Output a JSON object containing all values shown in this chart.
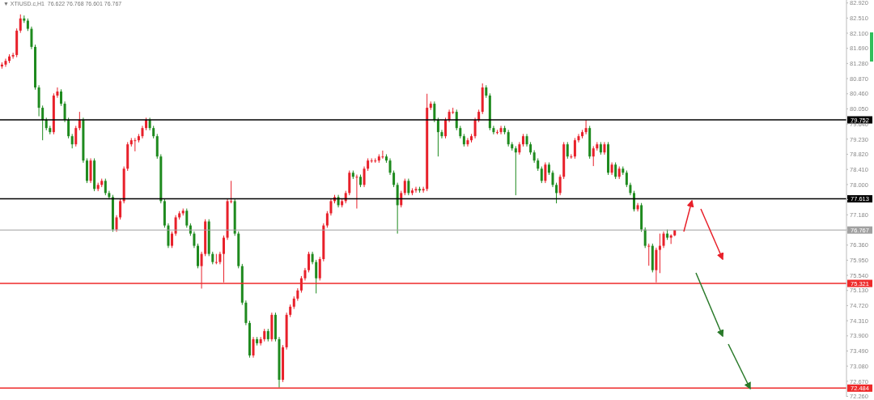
{
  "chart_data": {
    "type": "candlestick",
    "title": "▼ XTIUSD.c,H1  76.622 76.768 76.601 76.767",
    "categories": [
      null,
      null,
      null,
      null,
      null,
      null,
      null,
      null,
      null,
      null,
      null,
      null,
      null,
      null,
      null,
      null,
      null,
      null,
      null,
      null,
      null,
      null,
      null,
      null,
      null,
      null,
      null,
      null,
      null,
      null,
      null,
      null,
      null,
      null,
      null,
      null,
      null,
      null,
      null,
      null,
      null,
      null,
      null,
      null,
      null,
      null,
      null,
      null,
      null,
      null,
      null,
      null,
      null,
      null,
      null,
      null,
      null,
      null,
      null,
      null,
      null,
      null,
      null,
      null,
      null,
      null,
      null,
      null,
      null,
      null,
      null,
      null,
      null,
      null,
      null,
      null,
      null,
      null,
      null,
      null,
      null,
      null,
      null,
      null,
      null,
      null,
      null,
      null,
      null,
      null,
      null,
      null,
      null,
      null,
      null,
      null,
      null,
      null,
      null,
      null,
      null,
      null,
      null,
      null,
      null,
      null,
      null,
      null,
      null,
      null,
      null,
      null,
      null,
      null,
      null,
      null,
      null,
      null,
      null,
      null,
      null,
      null,
      null,
      null,
      null,
      null,
      null,
      null,
      null,
      null,
      null,
      null,
      null,
      null,
      null,
      null,
      null,
      null,
      null,
      null,
      null,
      null,
      null,
      null,
      null,
      null,
      null,
      null,
      null,
      null,
      null,
      null,
      null,
      null,
      null,
      null,
      null,
      null,
      null,
      null,
      null,
      null,
      null,
      null,
      null,
      null,
      null,
      null,
      null,
      null,
      null,
      null,
      null,
      null,
      null,
      null,
      null,
      null,
      null,
      null,
      null,
      null,
      null,
      null,
      null,
      null,
      null,
      null,
      null,
      null,
      null,
      null,
      null,
      null,
      null,
      null,
      null,
      null,
      null,
      null,
      null,
      null,
      null,
      null,
      null,
      null,
      null,
      null,
      null,
      null,
      null,
      null,
      null,
      null,
      null,
      null,
      null,
      null,
      null,
      null,
      null,
      null,
      null,
      null,
      null,
      null,
      null,
      null,
      null
    ],
    "ohlc": [
      [
        81.2,
        81.31,
        81.14,
        81.25
      ],
      [
        81.25,
        81.41,
        81.19,
        81.35
      ],
      [
        81.35,
        81.53,
        81.29,
        81.47
      ],
      [
        81.47,
        81.57,
        81.41,
        81.51
      ],
      [
        81.51,
        82.23,
        81.45,
        82.17
      ],
      [
        82.17,
        82.61,
        82.11,
        82.5
      ],
      [
        82.5,
        82.58,
        82.38,
        82.44
      ],
      [
        82.44,
        82.5,
        82.16,
        82.22
      ],
      [
        82.22,
        82.28,
        81.67,
        81.73
      ],
      [
        81.73,
        81.79,
        80.57,
        80.63
      ],
      [
        80.63,
        80.69,
        79.85,
        80.08
      ],
      [
        80.08,
        80.14,
        79.2,
        79.75
      ],
      [
        79.75,
        79.81,
        79.47,
        79.53
      ],
      [
        79.53,
        79.59,
        79.36,
        79.42
      ],
      [
        79.42,
        80.47,
        79.36,
        80.41
      ],
      [
        80.41,
        80.63,
        80.35,
        80.52
      ],
      [
        80.52,
        80.58,
        80.13,
        80.19
      ],
      [
        80.19,
        80.25,
        79.69,
        79.75
      ],
      [
        79.75,
        79.81,
        79.25,
        79.31
      ],
      [
        79.31,
        79.37,
        78.98,
        79.09
      ],
      [
        79.09,
        79.59,
        79.03,
        79.53
      ],
      [
        79.53,
        79.97,
        79.47,
        79.75
      ],
      [
        79.75,
        79.81,
        78.59,
        78.65
      ],
      [
        78.65,
        78.71,
        78.04,
        78.1
      ],
      [
        78.1,
        78.71,
        78.04,
        78.65
      ],
      [
        78.65,
        78.71,
        77.82,
        77.88
      ],
      [
        77.88,
        78.05,
        77.82,
        77.99
      ],
      [
        77.99,
        78.16,
        77.93,
        78.1
      ],
      [
        78.1,
        78.16,
        77.71,
        77.77
      ],
      [
        77.77,
        77.83,
        77.6,
        77.66
      ],
      [
        77.66,
        77.72,
        76.72,
        76.78
      ],
      [
        76.78,
        77.17,
        76.72,
        77.11
      ],
      [
        77.11,
        77.61,
        77.05,
        77.55
      ],
      [
        77.55,
        78.49,
        77.49,
        78.43
      ],
      [
        78.43,
        79.15,
        78.37,
        79.09
      ],
      [
        79.09,
        79.26,
        79.03,
        79.2
      ],
      [
        79.2,
        79.26,
        78.9,
        79.2
      ],
      [
        79.2,
        79.37,
        79.14,
        79.31
      ],
      [
        79.31,
        79.59,
        79.25,
        79.53
      ],
      [
        79.53,
        79.81,
        79.47,
        79.75
      ],
      [
        79.75,
        79.81,
        79.47,
        79.53
      ],
      [
        79.53,
        79.59,
        79.25,
        79.31
      ],
      [
        79.31,
        79.37,
        78.7,
        78.76
      ],
      [
        78.76,
        78.82,
        77.49,
        77.55
      ],
      [
        77.55,
        77.61,
        76.83,
        76.89
      ],
      [
        76.89,
        76.95,
        76.28,
        76.34
      ],
      [
        76.34,
        76.73,
        76.28,
        76.67
      ],
      [
        76.67,
        77.17,
        76.61,
        77.11
      ],
      [
        77.11,
        77.28,
        77.05,
        77.22
      ],
      [
        77.22,
        77.35,
        77.16,
        77.29
      ],
      [
        77.29,
        77.35,
        76.83,
        76.89
      ],
      [
        76.89,
        76.95,
        76.61,
        76.67
      ],
      [
        76.67,
        76.73,
        76.28,
        76.34
      ],
      [
        76.34,
        76.4,
        75.73,
        75.79
      ],
      [
        75.79,
        76.18,
        75.18,
        76.12
      ],
      [
        76.12,
        77.06,
        76.06,
        77.0
      ],
      [
        77.0,
        77.06,
        76.06,
        76.12
      ],
      [
        76.12,
        76.18,
        75.84,
        75.9
      ],
      [
        75.9,
        76.12,
        75.84,
        75.9
      ],
      [
        75.9,
        76.18,
        75.84,
        76.12
      ],
      [
        76.12,
        76.62,
        75.35,
        76.56
      ],
      [
        76.56,
        77.61,
        76.5,
        77.55
      ],
      [
        77.55,
        78.1,
        77.49,
        77.55
      ],
      [
        77.55,
        77.61,
        76.61,
        76.67
      ],
      [
        76.67,
        76.73,
        75.73,
        75.79
      ],
      [
        75.79,
        75.85,
        74.74,
        74.8
      ],
      [
        74.8,
        74.86,
        74.19,
        74.25
      ],
      [
        74.25,
        74.31,
        73.31,
        73.37
      ],
      [
        73.37,
        73.87,
        73.31,
        73.81
      ],
      [
        73.81,
        73.87,
        73.64,
        73.7
      ],
      [
        73.7,
        73.87,
        73.64,
        73.81
      ],
      [
        73.81,
        74.09,
        73.75,
        74.03
      ],
      [
        74.03,
        74.09,
        73.75,
        73.81
      ],
      [
        73.81,
        74.53,
        73.75,
        74.47
      ],
      [
        74.47,
        74.53,
        73.75,
        73.81
      ],
      [
        73.81,
        73.87,
        72.5,
        72.71
      ],
      [
        72.71,
        73.65,
        72.65,
        73.59
      ],
      [
        73.59,
        74.53,
        73.53,
        74.47
      ],
      [
        74.47,
        74.75,
        74.41,
        74.69
      ],
      [
        74.69,
        74.97,
        74.63,
        74.91
      ],
      [
        74.91,
        75.19,
        74.85,
        75.13
      ],
      [
        75.13,
        75.52,
        75.07,
        75.46
      ],
      [
        75.46,
        75.74,
        75.4,
        75.68
      ],
      [
        75.68,
        76.18,
        75.62,
        76.12
      ],
      [
        76.12,
        76.18,
        75.84,
        75.9
      ],
      [
        75.9,
        75.96,
        75.05,
        75.46
      ],
      [
        75.46,
        76.04,
        75.4,
        75.98
      ],
      [
        75.98,
        76.95,
        75.92,
        76.89
      ],
      [
        76.89,
        77.28,
        76.83,
        77.22
      ],
      [
        77.22,
        77.61,
        77.16,
        77.55
      ],
      [
        77.55,
        77.72,
        77.49,
        77.66
      ],
      [
        77.66,
        77.72,
        77.38,
        77.44
      ],
      [
        77.44,
        77.61,
        77.38,
        77.55
      ],
      [
        77.55,
        77.83,
        77.49,
        77.77
      ],
      [
        77.77,
        78.38,
        77.71,
        78.32
      ],
      [
        78.32,
        78.38,
        78.15,
        78.21
      ],
      [
        78.21,
        78.27,
        77.35,
        78.21
      ],
      [
        78.21,
        78.27,
        77.93,
        77.99
      ],
      [
        77.99,
        78.49,
        77.93,
        78.43
      ],
      [
        78.43,
        78.71,
        78.37,
        78.65
      ],
      [
        78.65,
        78.71,
        78.59,
        78.65
      ],
      [
        78.65,
        78.71,
        78.59,
        78.65
      ],
      [
        78.65,
        78.82,
        78.59,
        78.76
      ],
      [
        78.76,
        78.92,
        78.7,
        78.76
      ],
      [
        78.76,
        78.82,
        78.59,
        78.65
      ],
      [
        78.65,
        78.71,
        78.26,
        78.32
      ],
      [
        78.32,
        78.38,
        77.93,
        77.99
      ],
      [
        77.99,
        78.05,
        76.67,
        77.44
      ],
      [
        77.44,
        77.83,
        77.38,
        77.77
      ],
      [
        77.77,
        78.16,
        77.71,
        78.1
      ],
      [
        78.1,
        78.16,
        77.71,
        77.77
      ],
      [
        77.77,
        77.9,
        77.71,
        77.84
      ],
      [
        77.84,
        77.94,
        77.78,
        77.88
      ],
      [
        77.88,
        77.94,
        77.78,
        77.84
      ],
      [
        77.84,
        77.94,
        77.78,
        77.88
      ],
      [
        77.88,
        80.46,
        77.82,
        80.08
      ],
      [
        80.08,
        80.25,
        80.02,
        80.19
      ],
      [
        80.19,
        80.25,
        79.69,
        79.75
      ],
      [
        79.75,
        79.81,
        78.76,
        79.42
      ],
      [
        79.42,
        79.48,
        79.25,
        79.31
      ],
      [
        79.31,
        79.81,
        79.25,
        79.75
      ],
      [
        79.75,
        80.03,
        79.69,
        79.97
      ],
      [
        79.97,
        80.08,
        79.91,
        79.97
      ],
      [
        79.97,
        80.03,
        79.47,
        79.53
      ],
      [
        79.53,
        79.59,
        79.25,
        79.31
      ],
      [
        79.31,
        79.37,
        79.03,
        79.09
      ],
      [
        79.09,
        79.26,
        79.03,
        79.2
      ],
      [
        79.2,
        79.37,
        79.14,
        79.31
      ],
      [
        79.31,
        79.81,
        79.25,
        79.75
      ],
      [
        79.75,
        80.03,
        79.69,
        79.97
      ],
      [
        79.97,
        80.74,
        79.91,
        80.63
      ],
      [
        80.63,
        80.69,
        80.35,
        80.41
      ],
      [
        80.41,
        80.47,
        79.47,
        79.53
      ],
      [
        79.53,
        79.59,
        79.36,
        79.42
      ],
      [
        79.42,
        79.48,
        79.36,
        79.42
      ],
      [
        79.42,
        79.59,
        79.36,
        79.53
      ],
      [
        79.53,
        79.59,
        79.36,
        79.42
      ],
      [
        79.42,
        79.48,
        79.03,
        79.09
      ],
      [
        79.09,
        79.15,
        78.92,
        78.98
      ],
      [
        78.98,
        79.04,
        77.71,
        78.87
      ],
      [
        78.87,
        79.15,
        78.81,
        79.09
      ],
      [
        79.09,
        79.37,
        79.03,
        79.31
      ],
      [
        79.31,
        79.37,
        79.03,
        79.09
      ],
      [
        79.09,
        79.15,
        78.81,
        78.87
      ],
      [
        78.87,
        78.93,
        78.59,
        78.65
      ],
      [
        78.65,
        78.71,
        78.37,
        78.43
      ],
      [
        78.43,
        78.49,
        78.04,
        78.1
      ],
      [
        78.1,
        78.6,
        78.04,
        78.54
      ],
      [
        78.54,
        78.6,
        78.26,
        78.32
      ],
      [
        78.32,
        78.38,
        77.93,
        77.99
      ],
      [
        77.99,
        78.05,
        77.49,
        77.77
      ],
      [
        77.77,
        78.27,
        77.71,
        78.21
      ],
      [
        78.21,
        79.15,
        78.15,
        79.09
      ],
      [
        79.09,
        79.15,
        78.7,
        78.76
      ],
      [
        78.76,
        78.82,
        78.7,
        78.76
      ],
      [
        78.76,
        79.26,
        78.7,
        79.2
      ],
      [
        79.2,
        79.37,
        79.14,
        79.31
      ],
      [
        79.31,
        79.48,
        79.25,
        79.42
      ],
      [
        79.42,
        79.75,
        79.36,
        79.53
      ],
      [
        79.53,
        79.59,
        78.7,
        78.76
      ],
      [
        78.76,
        79.04,
        78.5,
        78.98
      ],
      [
        78.98,
        79.15,
        78.92,
        79.09
      ],
      [
        79.09,
        79.15,
        78.81,
        78.87
      ],
      [
        78.87,
        79.15,
        78.81,
        79.09
      ],
      [
        79.09,
        79.15,
        78.26,
        78.32
      ],
      [
        78.32,
        78.6,
        78.26,
        78.54
      ],
      [
        78.54,
        78.6,
        78.15,
        78.21
      ],
      [
        78.21,
        78.49,
        78.15,
        78.43
      ],
      [
        78.43,
        78.49,
        78.26,
        78.32
      ],
      [
        78.32,
        78.38,
        77.93,
        77.99
      ],
      [
        77.99,
        78.05,
        77.71,
        77.77
      ],
      [
        77.77,
        77.83,
        77.27,
        77.33
      ],
      [
        77.33,
        77.5,
        77.27,
        77.44
      ],
      [
        77.44,
        77.5,
        76.72,
        76.78
      ],
      [
        76.78,
        76.84,
        76.28,
        76.34
      ],
      [
        76.34,
        76.4,
        75.8,
        76.34
      ],
      [
        76.34,
        76.4,
        75.62,
        75.68
      ],
      [
        75.68,
        76.29,
        75.35,
        76.23
      ],
      [
        76.23,
        76.67,
        75.6,
        76.34
      ],
      [
        76.34,
        76.73,
        76.28,
        76.67
      ],
      [
        76.67,
        76.78,
        76.5,
        76.56
      ],
      [
        76.56,
        76.65,
        76.39,
        76.62
      ],
      [
        76.622,
        76.768,
        76.601,
        76.767
      ],
      null,
      null,
      null,
      null,
      null,
      null,
      null,
      null,
      null,
      null,
      null,
      null,
      null,
      null,
      null,
      null,
      null,
      null,
      null,
      null,
      null,
      null,
      null,
      null,
      null,
      null,
      null,
      null,
      null,
      null,
      null,
      null,
      null,
      null,
      null,
      null,
      null,
      null,
      null,
      null,
      null,
      null,
      null,
      null,
      null,
      null
    ],
    "colors": [
      "#e8202a",
      "#e8202a",
      "#e8202a",
      "#e8202a",
      "#e8202a",
      "#e8202a",
      "#1e8a1e",
      "#1e8a1e",
      "#1e8a1e",
      "#1e8a1e",
      "#1e8a1e",
      "#1e8a1e",
      "#1e8a1e",
      "#1e8a1e",
      "#e8202a",
      "#e8202a",
      "#1e8a1e",
      "#1e8a1e",
      "#1e8a1e",
      "#1e8a1e",
      "#e8202a",
      "#e8202a",
      "#1e8a1e",
      "#1e8a1e",
      "#e8202a",
      "#1e8a1e",
      "#e8202a",
      "#e8202a",
      "#1e8a1e",
      "#1e8a1e",
      "#1e8a1e",
      "#e8202a",
      "#e8202a",
      "#e8202a",
      "#e8202a",
      "#e8202a",
      "#e8202a",
      "#e8202a",
      "#e8202a",
      "#e8202a",
      "#1e8a1e",
      "#1e8a1e",
      "#1e8a1e",
      "#1e8a1e",
      "#1e8a1e",
      "#1e8a1e",
      "#e8202a",
      "#e8202a",
      "#e8202a",
      "#e8202a",
      "#1e8a1e",
      "#1e8a1e",
      "#1e8a1e",
      "#1e8a1e",
      "#e8202a",
      "#e8202a",
      "#1e8a1e",
      "#1e8a1e",
      "#e8202a",
      "#e8202a",
      "#e8202a",
      "#e8202a",
      "#e8202a",
      "#1e8a1e",
      "#1e8a1e",
      "#1e8a1e",
      "#1e8a1e",
      "#1e8a1e",
      "#e8202a",
      "#1e8a1e",
      "#e8202a",
      "#e8202a",
      "#1e8a1e",
      "#e8202a",
      "#1e8a1e",
      "#1e8a1e",
      "#e8202a",
      "#e8202a",
      "#e8202a",
      "#e8202a",
      "#e8202a",
      "#e8202a",
      "#e8202a",
      "#e8202a",
      "#1e8a1e",
      "#1e8a1e",
      "#e8202a",
      "#e8202a",
      "#e8202a",
      "#e8202a",
      "#e8202a",
      "#1e8a1e",
      "#e8202a",
      "#e8202a",
      "#e8202a",
      "#1e8a1e",
      "#e8202a",
      "#1e8a1e",
      "#e8202a",
      "#e8202a",
      "#e8202a",
      "#e8202a",
      "#e8202a",
      "#e8202a",
      "#1e8a1e",
      "#1e8a1e",
      "#1e8a1e",
      "#1e8a1e",
      "#e8202a",
      "#e8202a",
      "#1e8a1e",
      "#e8202a",
      "#e8202a",
      "#1e8a1e",
      "#e8202a",
      "#e8202a",
      "#e8202a",
      "#1e8a1e",
      "#1e8a1e",
      "#1e8a1e",
      "#e8202a",
      "#e8202a",
      "#e8202a",
      "#1e8a1e",
      "#1e8a1e",
      "#1e8a1e",
      "#e8202a",
      "#e8202a",
      "#e8202a",
      "#e8202a",
      "#e8202a",
      "#1e8a1e",
      "#1e8a1e",
      "#1e8a1e",
      "#e8202a",
      "#e8202a",
      "#1e8a1e",
      "#1e8a1e",
      "#1e8a1e",
      "#1e8a1e",
      "#e8202a",
      "#e8202a",
      "#1e8a1e",
      "#1e8a1e",
      "#1e8a1e",
      "#1e8a1e",
      "#1e8a1e",
      "#e8202a",
      "#1e8a1e",
      "#1e8a1e",
      "#1e8a1e",
      "#e8202a",
      "#e8202a",
      "#1e8a1e",
      "#e8202a",
      "#e8202a",
      "#e8202a",
      "#e8202a",
      "#e8202a",
      "#1e8a1e",
      "#e8202a",
      "#e8202a",
      "#1e8a1e",
      "#e8202a",
      "#1e8a1e",
      "#e8202a",
      "#1e8a1e",
      "#e8202a",
      "#1e8a1e",
      "#1e8a1e",
      "#1e8a1e",
      "#1e8a1e",
      "#e8202a",
      "#1e8a1e",
      "#1e8a1e",
      "#e8202a",
      "#1e8a1e",
      "#e8202a",
      "#e8202a",
      "#e8202a",
      "#1e8a1e",
      "#e8202a",
      "#e8202a",
      null,
      null,
      null,
      null,
      null,
      null,
      null,
      null,
      null,
      null,
      null,
      null,
      null,
      null,
      null,
      null,
      null,
      null,
      null,
      null,
      null,
      null,
      null,
      null,
      null,
      null,
      null,
      null,
      null,
      null,
      null,
      null,
      null,
      null,
      null,
      null,
      null,
      null,
      null,
      null,
      null,
      null,
      null,
      null,
      null,
      null
    ],
    "ylim": [
      72.25,
      83.0
    ],
    "yticks": [
      {
        "value": 82.92,
        "label": "82.920"
      },
      {
        "value": 82.51,
        "label": "82.510"
      },
      {
        "value": 82.1,
        "label": "82.100"
      },
      {
        "value": 81.69,
        "label": "81.690"
      },
      {
        "value": 81.28,
        "label": "81.280"
      },
      {
        "value": 80.87,
        "label": "80.870"
      },
      {
        "value": 80.46,
        "label": "80.460"
      },
      {
        "value": 80.05,
        "label": "80.050"
      },
      {
        "value": 79.64,
        "label": "79.640"
      },
      {
        "value": 79.23,
        "label": "79.230"
      },
      {
        "value": 78.82,
        "label": "78.820"
      },
      {
        "value": 78.41,
        "label": "78.410"
      },
      {
        "value": 78.0,
        "label": "78.000"
      },
      {
        "value": 77.59,
        "label": null
      },
      {
        "value": 77.18,
        "label": "77.180"
      },
      {
        "value": 76.77,
        "label": null
      },
      {
        "value": 76.36,
        "label": "76.360"
      },
      {
        "value": 75.95,
        "label": "75.950"
      },
      {
        "value": 75.54,
        "label": "75.540"
      },
      {
        "value": 75.13,
        "label": "75.130"
      },
      {
        "value": 74.72,
        "label": "74.720"
      },
      {
        "value": 74.31,
        "label": "74.310"
      },
      {
        "value": 73.9,
        "label": "73.900"
      },
      {
        "value": 73.49,
        "label": "73.490"
      },
      {
        "value": 73.08,
        "label": "73.080"
      },
      {
        "value": 72.67,
        "label": "72.670"
      },
      {
        "value": 72.26,
        "label": "72.260"
      }
    ],
    "tick_labels": "y",
    "ref_lines": [
      {
        "axis": "y",
        "value": 79.752,
        "label": "79.752",
        "color": "#000000"
      },
      {
        "axis": "y",
        "value": 77.613,
        "label": "77.613",
        "color": "#000000"
      },
      {
        "axis": "y",
        "value": 76.767,
        "label": "76.767",
        "color": "#a0a0a0"
      },
      {
        "axis": "y",
        "value": 75.321,
        "label": "75.321",
        "color": "#ee2a2a"
      },
      {
        "axis": "y",
        "value": 72.484,
        "label": "72.484",
        "color": "#ee2a2a"
      }
    ]
  }
}
